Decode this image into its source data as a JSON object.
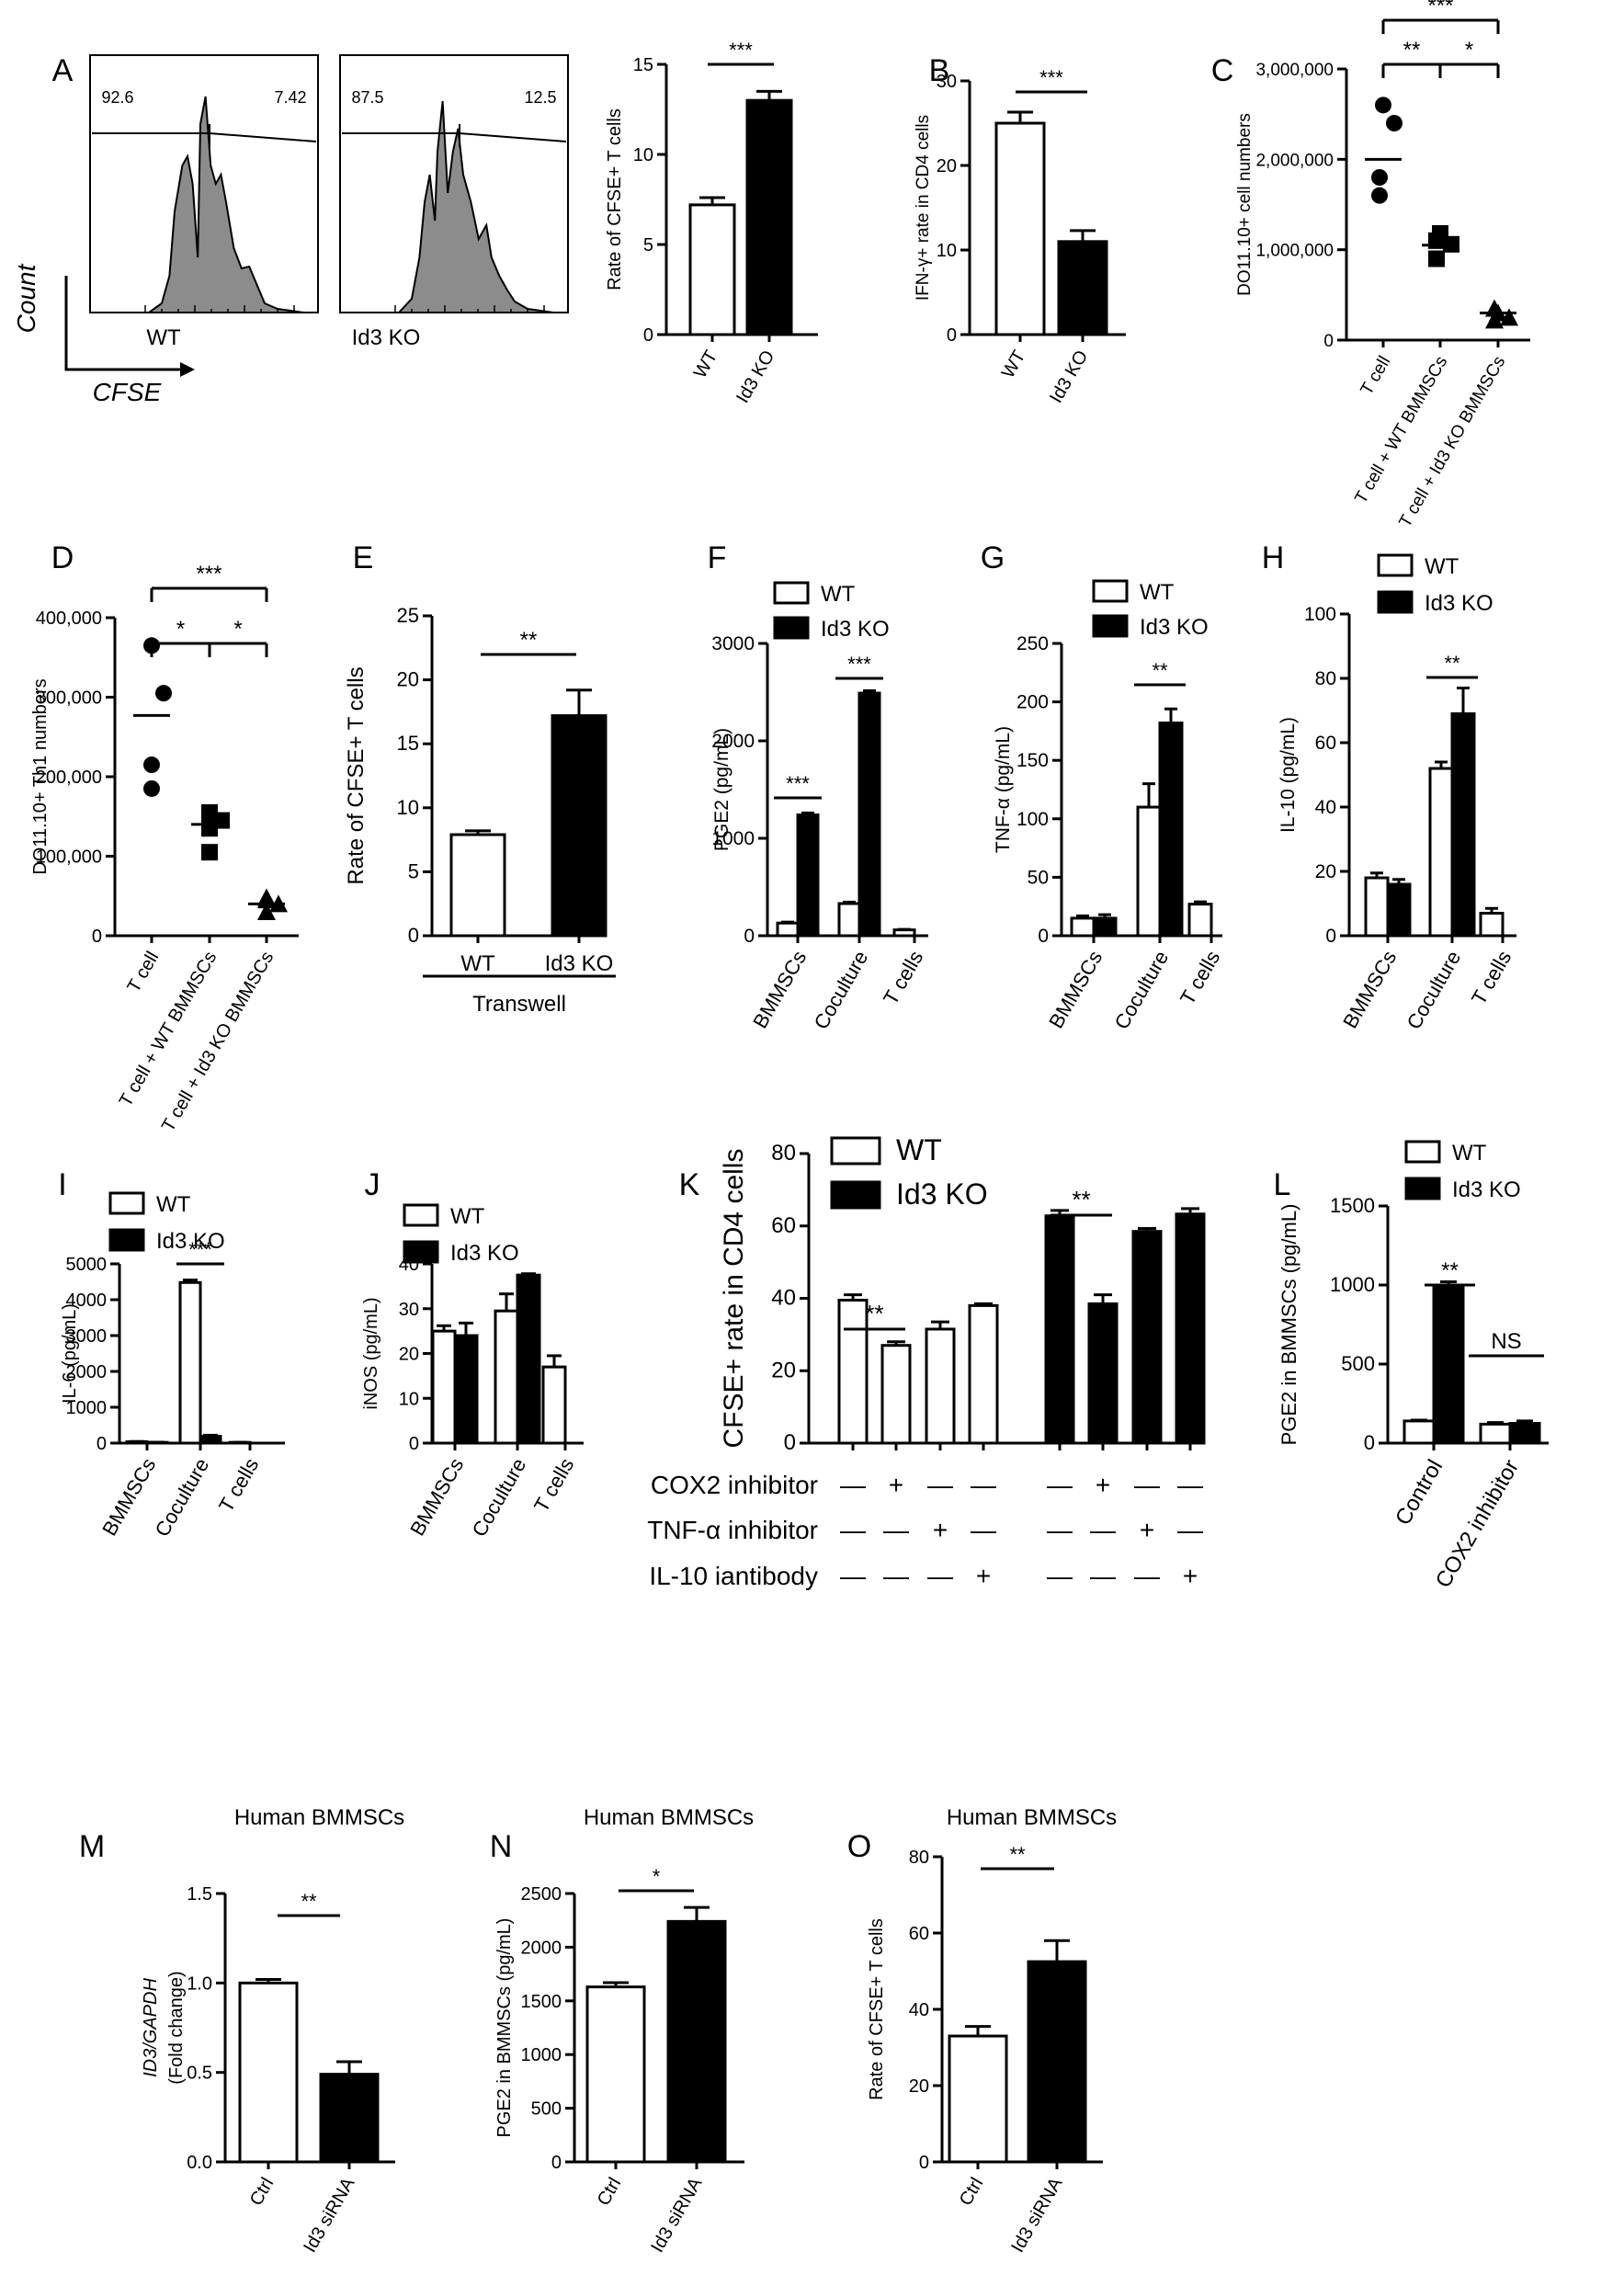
{
  "panel_letters": [
    "A",
    "B",
    "C",
    "D",
    "E",
    "F",
    "G",
    "H",
    "I",
    "J",
    "K",
    "L",
    "M",
    "N",
    "O"
  ],
  "chart_data": [
    {
      "id": "A_hist",
      "type": "histogram",
      "panels": [
        {
          "label": "WT",
          "gate_left": "92.6",
          "gate_right": "7.42"
        },
        {
          "label": "Id3 KO",
          "gate_left": "87.5",
          "gate_right": "12.5"
        }
      ],
      "ylabel": "Count",
      "xlabel": "CFSE"
    },
    {
      "id": "A_bar",
      "type": "bar",
      "categories": [
        "WT",
        "Id3 KO"
      ],
      "values": [
        7.2,
        13.0
      ],
      "errors": [
        0.4,
        0.5
      ],
      "fills": [
        "#ffffff",
        "#000000"
      ],
      "ylim": [
        0,
        15
      ],
      "yticks": [
        0,
        5,
        10,
        15
      ],
      "ylabel": "Rate of CFSE+ T cells",
      "sig": [
        {
          "from": 0,
          "to": 1,
          "text": "***"
        }
      ]
    },
    {
      "id": "B",
      "type": "bar",
      "categories": [
        "WT",
        "Id3 KO"
      ],
      "values": [
        25,
        11
      ],
      "errors": [
        1.3,
        1.3
      ],
      "fills": [
        "#ffffff",
        "#000000"
      ],
      "ylim": [
        0,
        30
      ],
      "yticks": [
        0,
        10,
        20,
        30
      ],
      "ylabel": "IFN-γ+ rate in CD4 cells",
      "sig": [
        {
          "from": 0,
          "to": 1,
          "text": "***"
        }
      ]
    },
    {
      "id": "C",
      "type": "scatter",
      "categories": [
        "T cell",
        "T cell + WT BMMSCs",
        "T cell + Id3 KO BMMSCs"
      ],
      "points": [
        [
          2600000,
          2400000,
          1800000,
          1600000
        ],
        [
          1180000,
          1060000,
          900000,
          1100000
        ],
        [
          300000,
          250000,
          220000,
          350000
        ]
      ],
      "markers": [
        "circle",
        "square",
        "triangle"
      ],
      "means": [
        2000000,
        1050000,
        300000
      ],
      "ylim": [
        0,
        3000000
      ],
      "yticks": [
        "0",
        "1,000,000",
        "2,000,000",
        "3,000,000"
      ],
      "ylabel": "DO11.10+ cell numbers",
      "sig": [
        {
          "from": 0,
          "to": 1,
          "text": "**"
        },
        {
          "from": 1,
          "to": 2,
          "text": "*"
        },
        {
          "from": 0,
          "to": 2,
          "text": "***"
        }
      ]
    },
    {
      "id": "D",
      "type": "scatter",
      "categories": [
        "T cell",
        "T cell + WT BMMSCs",
        "T cell + Id3 KO BMMSCs"
      ],
      "points": [
        [
          365000,
          305000,
          215000,
          185000
        ],
        [
          155000,
          145000,
          135000,
          105000
        ],
        [
          45000,
          40000,
          30000,
          48000
        ]
      ],
      "markers": [
        "circle",
        "square",
        "triangle"
      ],
      "means": [
        277000,
        140000,
        40000
      ],
      "ylim": [
        0,
        400000
      ],
      "yticks": [
        "0",
        "100,000",
        "200,000",
        "300,000",
        "400,000"
      ],
      "ylabel": "DO11.10+ Th1 numbers",
      "sig": [
        {
          "from": 0,
          "to": 1,
          "text": "*"
        },
        {
          "from": 1,
          "to": 2,
          "text": "*"
        },
        {
          "from": 0,
          "to": 2,
          "text": "***"
        }
      ]
    },
    {
      "id": "E",
      "type": "bar",
      "categories": [
        "WT",
        "Id3 KO"
      ],
      "values": [
        7.9,
        17.2
      ],
      "errors": [
        0.3,
        2.0
      ],
      "fills": [
        "#ffffff",
        "#000000"
      ],
      "ylim": [
        0,
        25
      ],
      "yticks": [
        0,
        5,
        10,
        15,
        20,
        25
      ],
      "ylabel": "Rate of CFSE+ T cells",
      "group_label": "Transwell",
      "sig": [
        {
          "from": 0,
          "to": 1,
          "text": "**"
        }
      ]
    },
    {
      "id": "F",
      "type": "grouped_bar",
      "categories": [
        "BMMSCs",
        "Coculture",
        "T cells"
      ],
      "series": [
        {
          "name": "WT",
          "values": [
            130,
            330,
            60
          ],
          "errors": [
            10,
            15,
            5
          ]
        },
        {
          "name": "Id3 KO",
          "values": [
            1240,
            2490,
            null
          ],
          "errors": [
            20,
            25,
            null
          ]
        }
      ],
      "ylim": [
        0,
        3000
      ],
      "yticks": [
        0,
        1000,
        2000,
        3000
      ],
      "ylabel": "PGE2 (pg/mL)",
      "sig": [
        {
          "cat": 0,
          "text": "***"
        },
        {
          "cat": 1,
          "text": "***"
        }
      ]
    },
    {
      "id": "G",
      "type": "grouped_bar",
      "categories": [
        "BMMSCs",
        "Coculture",
        "T cells"
      ],
      "series": [
        {
          "name": "WT",
          "values": [
            15,
            110,
            27
          ],
          "errors": [
            2,
            20,
            2
          ]
        },
        {
          "name": "Id3 KO",
          "values": [
            15,
            182,
            null
          ],
          "errors": [
            3,
            12,
            null
          ]
        }
      ],
      "ylim": [
        0,
        250
      ],
      "yticks": [
        0,
        50,
        100,
        150,
        200,
        250
      ],
      "ylabel": "TNF-α (pg/mL)",
      "sig": [
        {
          "cat": 1,
          "text": "**"
        }
      ]
    },
    {
      "id": "H",
      "type": "grouped_bar",
      "categories": [
        "BMMSCs",
        "Coculture",
        "T cells"
      ],
      "series": [
        {
          "name": "WT",
          "values": [
            18,
            52,
            7
          ],
          "errors": [
            1.5,
            2,
            1.5
          ]
        },
        {
          "name": "Id3 KO",
          "values": [
            16,
            69,
            null
          ],
          "errors": [
            1.5,
            8,
            null
          ]
        }
      ],
      "ylim": [
        0,
        100
      ],
      "yticks": [
        0,
        20,
        40,
        60,
        80,
        100
      ],
      "ylabel": "IL-10 (pg/mL)",
      "sig": [
        {
          "cat": 1,
          "text": "**"
        }
      ]
    },
    {
      "id": "I",
      "type": "grouped_bar",
      "categories": [
        "BMMSCs",
        "Coculture",
        "T cells"
      ],
      "series": [
        {
          "name": "WT",
          "values": [
            40,
            4480,
            20
          ],
          "errors": [
            5,
            70,
            3
          ]
        },
        {
          "name": "Id3 KO",
          "values": [
            20,
            190,
            null
          ],
          "errors": [
            5,
            30,
            null
          ]
        }
      ],
      "ylim": [
        0,
        5000
      ],
      "yticks": [
        0,
        1000,
        2000,
        3000,
        4000,
        5000
      ],
      "ylabel": "IL-6 (pg/mL)",
      "sig": [
        {
          "cat": 1,
          "text": "***"
        }
      ]
    },
    {
      "id": "J",
      "type": "grouped_bar",
      "categories": [
        "BMMSCs",
        "Coculture",
        "T cells"
      ],
      "series": [
        {
          "name": "WT",
          "values": [
            25,
            29.5,
            17
          ],
          "errors": [
            1.2,
            3.8,
            2.5
          ]
        },
        {
          "name": "Id3 KO",
          "values": [
            24,
            37.5,
            null
          ],
          "errors": [
            2.8,
            0.3,
            null
          ]
        }
      ],
      "ylim": [
        0,
        40
      ],
      "yticks": [
        0,
        10,
        20,
        30,
        40
      ],
      "ylabel": "iNOS (pg/mL)",
      "sig": []
    },
    {
      "id": "K",
      "type": "grouped_bar",
      "series": [
        {
          "name": "WT",
          "values": [
            39.5,
            27,
            31.5,
            38
          ],
          "errors": [
            1.5,
            1,
            2,
            0.5
          ]
        },
        {
          "name": "Id3 KO",
          "values": [
            62.8,
            38.5,
            58.5,
            63.3
          ],
          "errors": [
            1.5,
            2.5,
            0.8,
            1.5
          ]
        }
      ],
      "ylim": [
        0,
        80
      ],
      "yticks": [
        0,
        20,
        40,
        60,
        80
      ],
      "ylabel": "CFSE+ rate in CD4 cells",
      "treatments": [
        {
          "label": "COX2 inhibitor",
          "marks": [
            "—",
            "+",
            "—",
            "—",
            "—",
            "+",
            "—",
            "—"
          ]
        },
        {
          "label": "TNF-α  inhibitor",
          "marks": [
            "—",
            "—",
            "+",
            "—",
            "—",
            "—",
            "+",
            "—"
          ]
        },
        {
          "label": "IL-10 iantibody",
          "marks": [
            "—",
            "—",
            "—",
            "+",
            "—",
            "—",
            "—",
            "+"
          ]
        }
      ],
      "sig": [
        {
          "from": 0,
          "to": 1,
          "text": "**"
        },
        {
          "from": 4,
          "to": 5,
          "text": "**"
        }
      ]
    },
    {
      "id": "L",
      "type": "grouped_bar",
      "categories": [
        "Control",
        "COX2 inhibitor"
      ],
      "series": [
        {
          "name": "WT",
          "values": [
            140,
            120
          ],
          "errors": [
            5,
            10
          ]
        },
        {
          "name": "Id3 KO",
          "values": [
            995,
            125
          ],
          "errors": [
            25,
            15
          ]
        }
      ],
      "ylim": [
        0,
        1500
      ],
      "yticks": [
        0,
        500,
        1000,
        1500
      ],
      "ylabel": "PGE2 in BMMSCs (pg/mL)",
      "sig": [
        {
          "cat": 0,
          "text": "**"
        },
        {
          "cat": 1,
          "text": "NS"
        }
      ]
    },
    {
      "id": "M",
      "type": "bar",
      "title": "Human BMMSCs",
      "categories": [
        "Ctrl",
        "Id3 siRNA"
      ],
      "values": [
        1.0,
        0.49
      ],
      "errors": [
        0.02,
        0.07
      ],
      "fills": [
        "#ffffff",
        "#000000"
      ],
      "ylim": [
        0,
        1.5
      ],
      "yticks": [
        "0.0",
        "0.5",
        "1.0",
        "1.5"
      ],
      "ylabel": "ID3/GAPDH",
      "ylabel2": "(Fold change)",
      "sig": [
        {
          "from": 0,
          "to": 1,
          "text": "**"
        }
      ]
    },
    {
      "id": "N",
      "type": "bar",
      "title": "Human BMMSCs",
      "categories": [
        "Ctrl",
        "Id3 siRNA"
      ],
      "values": [
        1630,
        2240
      ],
      "errors": [
        40,
        130
      ],
      "fills": [
        "#ffffff",
        "#000000"
      ],
      "ylim": [
        0,
        2500
      ],
      "yticks": [
        0,
        500,
        1000,
        1500,
        2000,
        2500
      ],
      "ylabel": "PGE2 in BMMSCs (pg/mL)",
      "sig": [
        {
          "from": 0,
          "to": 1,
          "text": "*"
        }
      ]
    },
    {
      "id": "O",
      "type": "bar",
      "title": "Human BMMSCs",
      "categories": [
        "Ctrl",
        "Id3 siRNA"
      ],
      "values": [
        33,
        52.5
      ],
      "errors": [
        2.5,
        5.5
      ],
      "fills": [
        "#ffffff",
        "#000000"
      ],
      "ylim": [
        0,
        80
      ],
      "yticks": [
        0,
        20,
        40,
        60,
        80
      ],
      "ylabel": "Rate of CFSE+ T cells",
      "sig": [
        {
          "from": 0,
          "to": 1,
          "text": "**"
        }
      ]
    }
  ]
}
